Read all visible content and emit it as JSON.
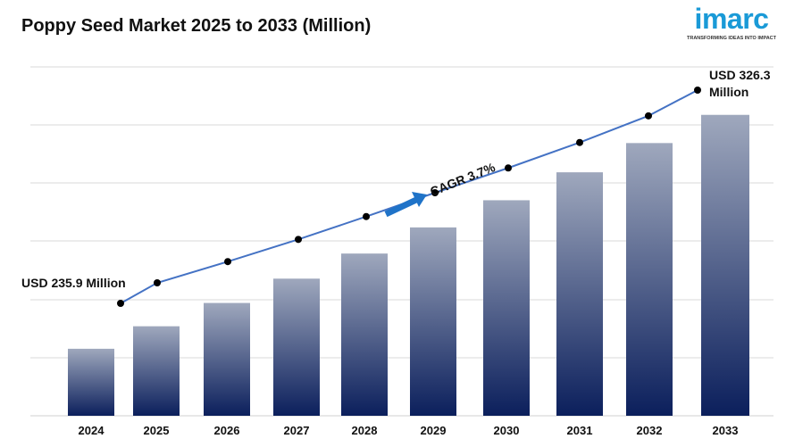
{
  "title": "Poppy Seed Market 2025 to 2033 (Million)",
  "logo": {
    "word": "imarc",
    "tagline": "TRANSFORMING IDEAS INTO IMPACT",
    "color": "#1a9ad7"
  },
  "chart_data": {
    "type": "bar",
    "categories": [
      "2024",
      "2025",
      "2026",
      "2027",
      "2028",
      "2029",
      "2030",
      "2031",
      "2032",
      "2033"
    ],
    "series": [
      {
        "type": "bar",
        "values": [
          235.9,
          244.6,
          253.6,
          263.0,
          272.7,
          282.8,
          293.3,
          304.1,
          315.4,
          326.3
        ]
      },
      {
        "type": "line",
        "values": [
          235.9,
          244.6,
          253.6,
          263.0,
          272.7,
          282.8,
          293.3,
          304.1,
          315.4,
          326.3
        ]
      }
    ],
    "annotations": {
      "start": "USD 235.9 Million",
      "end_line1": "USD 326.3",
      "end_line2": "Million",
      "cagr": "CAGR 3.7%"
    },
    "grid": true,
    "colors": {
      "bar_top": "#9fa8bd",
      "bar_bottom": "#0b1f5c",
      "line": "#4472c4",
      "marker": "#000000",
      "arrow": "#1f73c8",
      "grid": "#d9d9d9"
    }
  }
}
